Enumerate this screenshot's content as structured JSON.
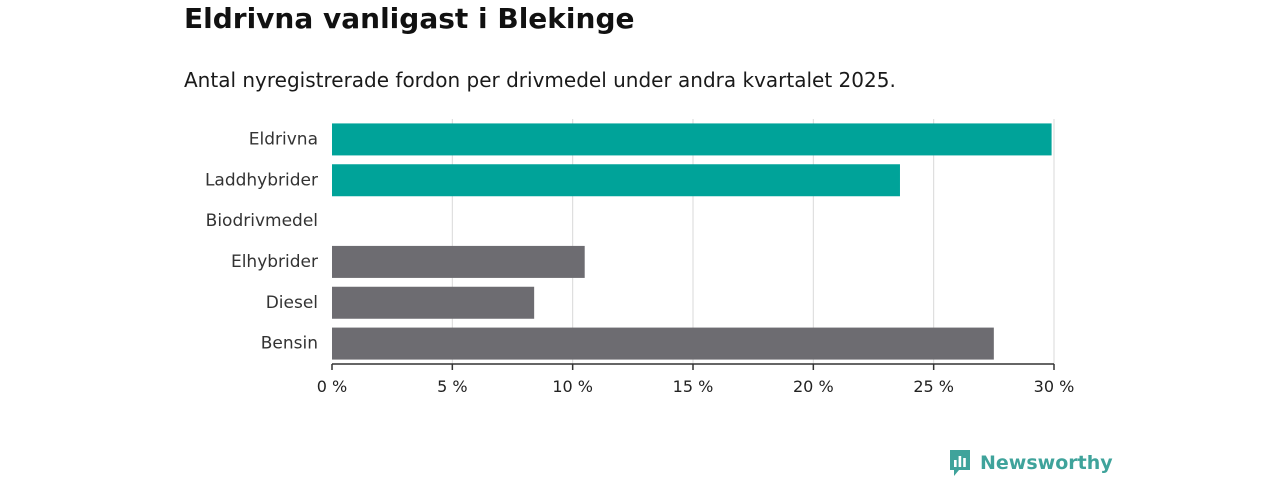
{
  "chart_data": {
    "type": "bar",
    "orientation": "horizontal",
    "title": "Eldrivna vanligast i Blekinge",
    "subtitle": "Antal nyregistrerade fordon per drivmedel under andra kvartalet 2025.",
    "categories": [
      "Eldrivna",
      "Laddhybrider",
      "Biodrivmedel",
      "Elhybrider",
      "Diesel",
      "Bensin"
    ],
    "values": [
      29.9,
      23.6,
      0,
      10.5,
      8.4,
      27.5
    ],
    "colors": [
      "#00a399",
      "#00a399",
      "#00a399",
      "#6d6c71",
      "#6d6c71",
      "#6d6c71"
    ],
    "xlim": [
      0,
      30
    ],
    "xticks": [
      0,
      5,
      10,
      15,
      20,
      25,
      30
    ],
    "tick_labels": [
      "0 %",
      "5 %",
      "10 %",
      "15 %",
      "20 %",
      "25 %",
      "30 %"
    ],
    "grid": "vertical",
    "xlabel": "",
    "ylabel": ""
  },
  "brand": {
    "name": "Newsworthy",
    "color": "#3fa39b",
    "icon": "newsworthy-logo-icon"
  },
  "colors": {
    "gridline": "#d9d9d9",
    "axis": "#333333"
  }
}
